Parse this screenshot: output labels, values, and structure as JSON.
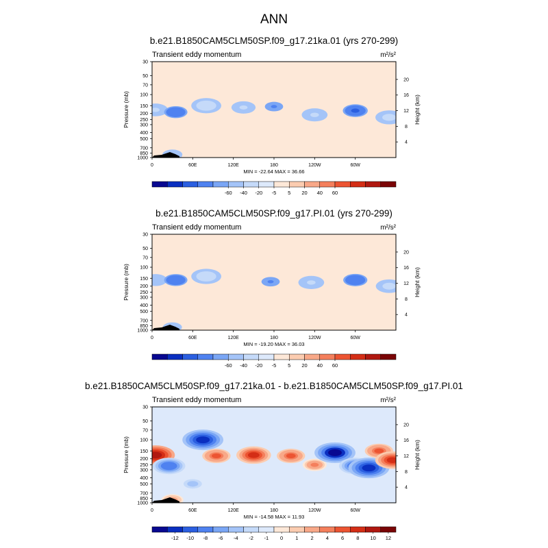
{
  "figure": {
    "title": "ANN"
  },
  "chart_data": [
    {
      "type": "heatmap",
      "title": "b.e21.B1850CAM5CLM50SP.f09_g17.21ka.01 (yrs 270-299)",
      "subtitle": "Transient eddy momentum",
      "units": "m²/s²",
      "ylabel": "Pressure (mb)",
      "ylabel_right": "Height (km)",
      "x_ticks": [
        "0",
        "60E",
        "120E",
        "180",
        "120W",
        "60W"
      ],
      "y_ticks": [
        "30",
        "50",
        "70",
        "100",
        "150",
        "200",
        "250",
        "300",
        "400",
        "500",
        "700",
        "850",
        "1000"
      ],
      "y_right_ticks": [
        "4",
        "8",
        "12",
        "16",
        "20"
      ],
      "stats": "MIN = -22.64  MAX = 36.66",
      "colorbar_labels": [
        "-60",
        "-40",
        "-20",
        "-5",
        "5",
        "20",
        "40",
        "60"
      ],
      "colorbar_colors": [
        "#080890",
        "#0a2fc0",
        "#2b5fe0",
        "#4f82f0",
        "#7aa6f5",
        "#a4c4f8",
        "#c5daf9",
        "#dde9fb",
        "#fde8d8",
        "#fbccb0",
        "#f8a888",
        "#f47f5c",
        "#ec5432",
        "#d42e16",
        "#b01810",
        "#7a0506"
      ],
      "background_color": "#fde8d8",
      "features": [
        {
          "lon": 5,
          "lev": 175,
          "value": 22
        },
        {
          "lon": 35,
          "lev": 190,
          "value": -18
        },
        {
          "lon": 80,
          "lev": 150,
          "value": 34
        },
        {
          "lon": 135,
          "lev": 160,
          "value": 20
        },
        {
          "lon": 180,
          "lev": 155,
          "value": -6
        },
        {
          "lon": 240,
          "lev": 210,
          "value": 24
        },
        {
          "lon": 300,
          "lev": 180,
          "value": -22
        },
        {
          "lon": 350,
          "lev": 230,
          "value": 28
        },
        {
          "lon": 30,
          "lev": 900,
          "value": 10
        }
      ]
    },
    {
      "type": "heatmap",
      "title": "b.e21.B1850CAM5CLM50SP.f09_g17.PI.01 (yrs 270-299)",
      "subtitle": "Transient eddy momentum",
      "units": "m²/s²",
      "ylabel": "Pressure (mb)",
      "ylabel_right": "Height (km)",
      "x_ticks": [
        "0",
        "60E",
        "120E",
        "180",
        "120W",
        "60W"
      ],
      "y_ticks": [
        "30",
        "50",
        "70",
        "100",
        "150",
        "200",
        "250",
        "300",
        "400",
        "500",
        "700",
        "850",
        "1000"
      ],
      "y_right_ticks": [
        "4",
        "8",
        "12",
        "16",
        "20"
      ],
      "stats": "MIN = -19.20  MAX = 36.03",
      "colorbar_labels": [
        "-60",
        "-40",
        "-20",
        "-5",
        "5",
        "20",
        "40",
        "60"
      ],
      "colorbar_colors": [
        "#080890",
        "#0a2fc0",
        "#2b5fe0",
        "#4f82f0",
        "#7aa6f5",
        "#a4c4f8",
        "#c5daf9",
        "#dde9fb",
        "#fde8d8",
        "#fbccb0",
        "#f8a888",
        "#f47f5c",
        "#ec5432",
        "#d42e16",
        "#b01810",
        "#7a0506"
      ],
      "background_color": "#fde8d8",
      "features": [
        {
          "lon": 5,
          "lev": 160,
          "value": 18
        },
        {
          "lon": 35,
          "lev": 160,
          "value": -18
        },
        {
          "lon": 80,
          "lev": 140,
          "value": 34
        },
        {
          "lon": 175,
          "lev": 170,
          "value": -6
        },
        {
          "lon": 235,
          "lev": 175,
          "value": 24
        },
        {
          "lon": 300,
          "lev": 160,
          "value": -20
        },
        {
          "lon": 350,
          "lev": 200,
          "value": 26
        },
        {
          "lon": 30,
          "lev": 900,
          "value": 8
        }
      ]
    },
    {
      "type": "heatmap",
      "title": "b.e21.B1850CAM5CLM50SP.f09_g17.21ka.01 - b.e21.B1850CAM5CLM50SP.f09_g17.PI.01",
      "subtitle": "Transient eddy momentum",
      "units": "m²/s²",
      "ylabel": "Pressure (mb)",
      "ylabel_right": "Height (km)",
      "x_ticks": [
        "0",
        "60E",
        "120E",
        "180",
        "120W",
        "60W"
      ],
      "y_ticks": [
        "30",
        "50",
        "70",
        "100",
        "150",
        "200",
        "250",
        "300",
        "400",
        "500",
        "700",
        "850",
        "1000"
      ],
      "y_right_ticks": [
        "4",
        "8",
        "12",
        "16",
        "20"
      ],
      "stats": "MIN = -14.58  MAX = 11.93",
      "colorbar_labels": [
        "-12",
        "-10",
        "-8",
        "-6",
        "-4",
        "-2",
        "-1",
        "0",
        "1",
        "2",
        "4",
        "6",
        "8",
        "10",
        "12"
      ],
      "colorbar_colors": [
        "#080890",
        "#0a2fc0",
        "#2b5fe0",
        "#4f82f0",
        "#7aa6f5",
        "#a4c4f8",
        "#c5daf9",
        "#dde9fb",
        "#fde8d8",
        "#fbccb0",
        "#f8a888",
        "#f47f5c",
        "#ec5432",
        "#d42e16",
        "#b01810",
        "#7a0506"
      ],
      "background_color": "#dde9fb",
      "features": [
        {
          "lon": 5,
          "lev": 175,
          "value": 11
        },
        {
          "lon": 25,
          "lev": 260,
          "value": -8
        },
        {
          "lon": 75,
          "lev": 100,
          "value": -12
        },
        {
          "lon": 95,
          "lev": 180,
          "value": 6
        },
        {
          "lon": 150,
          "lev": 175,
          "value": 9
        },
        {
          "lon": 205,
          "lev": 180,
          "value": 6
        },
        {
          "lon": 240,
          "lev": 250,
          "value": 4
        },
        {
          "lon": 270,
          "lev": 160,
          "value": -13
        },
        {
          "lon": 300,
          "lev": 260,
          "value": -8
        },
        {
          "lon": 320,
          "lev": 280,
          "value": -12
        },
        {
          "lon": 335,
          "lev": 150,
          "value": 6
        },
        {
          "lon": 355,
          "lev": 210,
          "value": 9
        },
        {
          "lon": 60,
          "lev": 500,
          "value": -3
        },
        {
          "lon": 30,
          "lev": 900,
          "value": 3
        }
      ]
    }
  ]
}
